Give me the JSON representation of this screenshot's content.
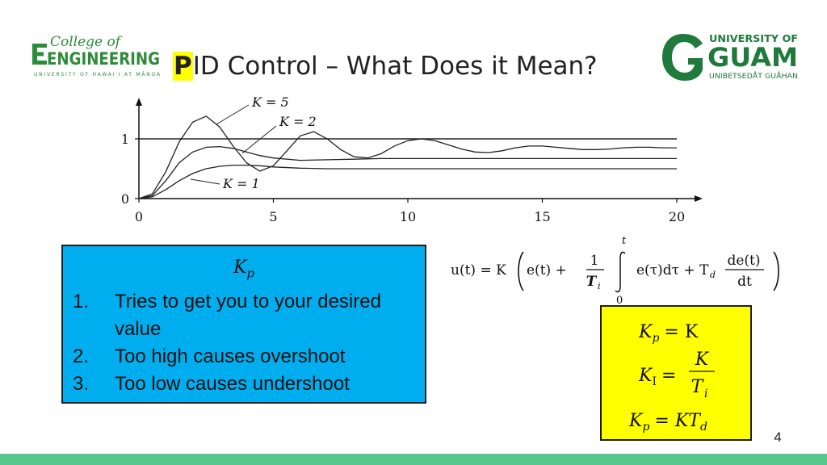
{
  "logos": {
    "left": {
      "line1": "College of",
      "line2": "ENGINEERING",
      "line3": "UNIVERSITY OF HAWAI'I AT MĀNOA",
      "color": "#2e8b3a"
    },
    "right": {
      "line1": "UNIVERSITY OF",
      "line2": "GUAM",
      "line3": "UNIBETSEDÅT GUÅHAN",
      "color": "#1f7a3c"
    }
  },
  "title": {
    "highlight": "P",
    "rest": "ID Control – What Does it Mean?",
    "highlight_color": "#ffff00"
  },
  "chart_data": {
    "type": "line",
    "x_ticks": [
      "0",
      "5",
      "10",
      "15",
      "20"
    ],
    "y_ticks": [
      "0",
      "1"
    ],
    "xlim": [
      0,
      20
    ],
    "ylim": [
      0,
      1.5
    ],
    "annotations": [
      "K = 5",
      "K = 2",
      "K = 1"
    ],
    "series": [
      {
        "name": "K = 5",
        "x": [
          0,
          0.5,
          1,
          1.5,
          2,
          2.5,
          3,
          3.5,
          4,
          4.5,
          5,
          5.5,
          6,
          6.5,
          7,
          7.5,
          8,
          8.5,
          9,
          9.5,
          10,
          10.5,
          11,
          11.5,
          12,
          12.5,
          13,
          13.5,
          14,
          14.5,
          15,
          15.5,
          16,
          16.5,
          17,
          17.5,
          18,
          18.5,
          19,
          19.5,
          20
        ],
        "y": [
          0,
          0.08,
          0.45,
          0.95,
          1.28,
          1.38,
          1.2,
          0.88,
          0.6,
          0.46,
          0.55,
          0.8,
          1.05,
          1.12,
          1.0,
          0.82,
          0.7,
          0.68,
          0.75,
          0.88,
          0.97,
          1.0,
          0.97,
          0.9,
          0.83,
          0.78,
          0.77,
          0.8,
          0.85,
          0.88,
          0.88,
          0.86,
          0.84,
          0.82,
          0.82,
          0.83,
          0.85,
          0.86,
          0.86,
          0.85,
          0.85
        ]
      },
      {
        "name": "K = 2",
        "x": [
          0,
          0.5,
          1,
          1.5,
          2,
          2.5,
          3,
          3.5,
          4,
          4.5,
          5,
          6,
          7,
          8,
          9,
          10,
          12,
          14,
          16,
          18,
          20
        ],
        "y": [
          0,
          0.05,
          0.3,
          0.6,
          0.78,
          0.86,
          0.87,
          0.84,
          0.78,
          0.72,
          0.68,
          0.64,
          0.65,
          0.66,
          0.67,
          0.67,
          0.67,
          0.67,
          0.67,
          0.67,
          0.67
        ]
      },
      {
        "name": "K = 1",
        "x": [
          0,
          0.5,
          1,
          1.5,
          2,
          2.5,
          3,
          3.5,
          4,
          4.5,
          5,
          6,
          7,
          8,
          10,
          12,
          14,
          16,
          18,
          20
        ],
        "y": [
          0,
          0.03,
          0.15,
          0.3,
          0.42,
          0.5,
          0.54,
          0.56,
          0.56,
          0.55,
          0.53,
          0.51,
          0.5,
          0.5,
          0.5,
          0.5,
          0.5,
          0.5,
          0.5,
          0.5
        ]
      },
      {
        "name": "",
        "x": [
          0,
          20
        ],
        "y": [
          1,
          1
        ]
      }
    ]
  },
  "kp_box": {
    "symbol": "K",
    "symbol_sub": "p",
    "items": [
      {
        "num": "1.",
        "text": "Tries to get you to your desired value"
      },
      {
        "num": "2.",
        "text": "Too high causes overshoot"
      },
      {
        "num": "3.",
        "text": "Too low causes undershoot"
      }
    ],
    "color": "#00aeef"
  },
  "equation": {
    "lhs": "u(t) = K",
    "e_t": "e(t) +",
    "frac1_num": "1",
    "frac1_den": "T",
    "frac1_den_sub": "i",
    "int_upper": "t",
    "int_lower": "0",
    "integrand": "e(τ)dτ + T",
    "td_sub": "d",
    "frac2_num": "de(t)",
    "frac2_den": "dt"
  },
  "gain_box": {
    "kp_lhs": "K",
    "kp_sub": "p",
    "kp_rhs": "= K",
    "ki_lhs": "K",
    "ki_sub": "I",
    "ki_eq": "=",
    "ki_num": "K",
    "ki_den": "T",
    "ki_den_sub": "i",
    "kd_lhs": "K",
    "kd_sub": "p",
    "kd_rhs": "= KT",
    "kd_rhs_sub": "d",
    "color": "#ffff00"
  },
  "page_number": "4"
}
